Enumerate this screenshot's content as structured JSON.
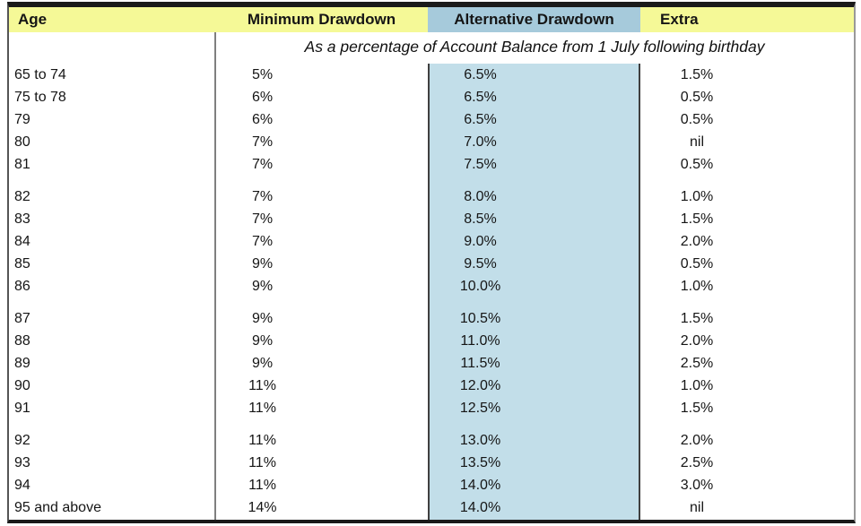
{
  "colors": {
    "header_yellow": "#F5F997",
    "header_blue": "#A6CADB",
    "column_blue": "#C2DEE9",
    "border_dark": "#1A1A1A",
    "grid_gray": "#7F7F7F"
  },
  "header": {
    "age_label": "Age",
    "minimum_label": "Minimum Drawdown",
    "alternative_label": "Alternative Drawdown",
    "extra_label": "Extra",
    "subheader": "As a percentage of Account Balance from 1 July following birthday"
  },
  "groups": [
    {
      "rows": [
        {
          "age": "65 to 74",
          "minimum": "5%",
          "alternative": "6.5%",
          "extra": "1.5%"
        },
        {
          "age": "75 to 78",
          "minimum": "6%",
          "alternative": "6.5%",
          "extra": "0.5%"
        },
        {
          "age": "79",
          "minimum": "6%",
          "alternative": "6.5%",
          "extra": "0.5%"
        },
        {
          "age": "80",
          "minimum": "7%",
          "alternative": "7.0%",
          "extra": "nil"
        },
        {
          "age": "81",
          "minimum": "7%",
          "alternative": "7.5%",
          "extra": "0.5%"
        }
      ]
    },
    {
      "rows": [
        {
          "age": "82",
          "minimum": "7%",
          "alternative": "8.0%",
          "extra": "1.0%"
        },
        {
          "age": "83",
          "minimum": "7%",
          "alternative": "8.5%",
          "extra": "1.5%"
        },
        {
          "age": "84",
          "minimum": "7%",
          "alternative": "9.0%",
          "extra": "2.0%"
        },
        {
          "age": "85",
          "minimum": "9%",
          "alternative": "9.5%",
          "extra": "0.5%"
        },
        {
          "age": "86",
          "minimum": "9%",
          "alternative": "10.0%",
          "extra": "1.0%"
        }
      ]
    },
    {
      "rows": [
        {
          "age": "87",
          "minimum": "9%",
          "alternative": "10.5%",
          "extra": "1.5%"
        },
        {
          "age": "88",
          "minimum": "9%",
          "alternative": "11.0%",
          "extra": "2.0%"
        },
        {
          "age": "89",
          "minimum": "9%",
          "alternative": "11.5%",
          "extra": "2.5%"
        },
        {
          "age": "90",
          "minimum": "11%",
          "alternative": "12.0%",
          "extra": "1.0%"
        },
        {
          "age": "91",
          "minimum": "11%",
          "alternative": "12.5%",
          "extra": "1.5%"
        }
      ]
    },
    {
      "rows": [
        {
          "age": "92",
          "minimum": "11%",
          "alternative": "13.0%",
          "extra": "2.0%"
        },
        {
          "age": "93",
          "minimum": "11%",
          "alternative": "13.5%",
          "extra": "2.5%"
        },
        {
          "age": "94",
          "minimum": "11%",
          "alternative": "14.0%",
          "extra": "3.0%"
        },
        {
          "age": "95 and above",
          "minimum": "14%",
          "alternative": "14.0%",
          "extra": "nil"
        }
      ]
    }
  ]
}
